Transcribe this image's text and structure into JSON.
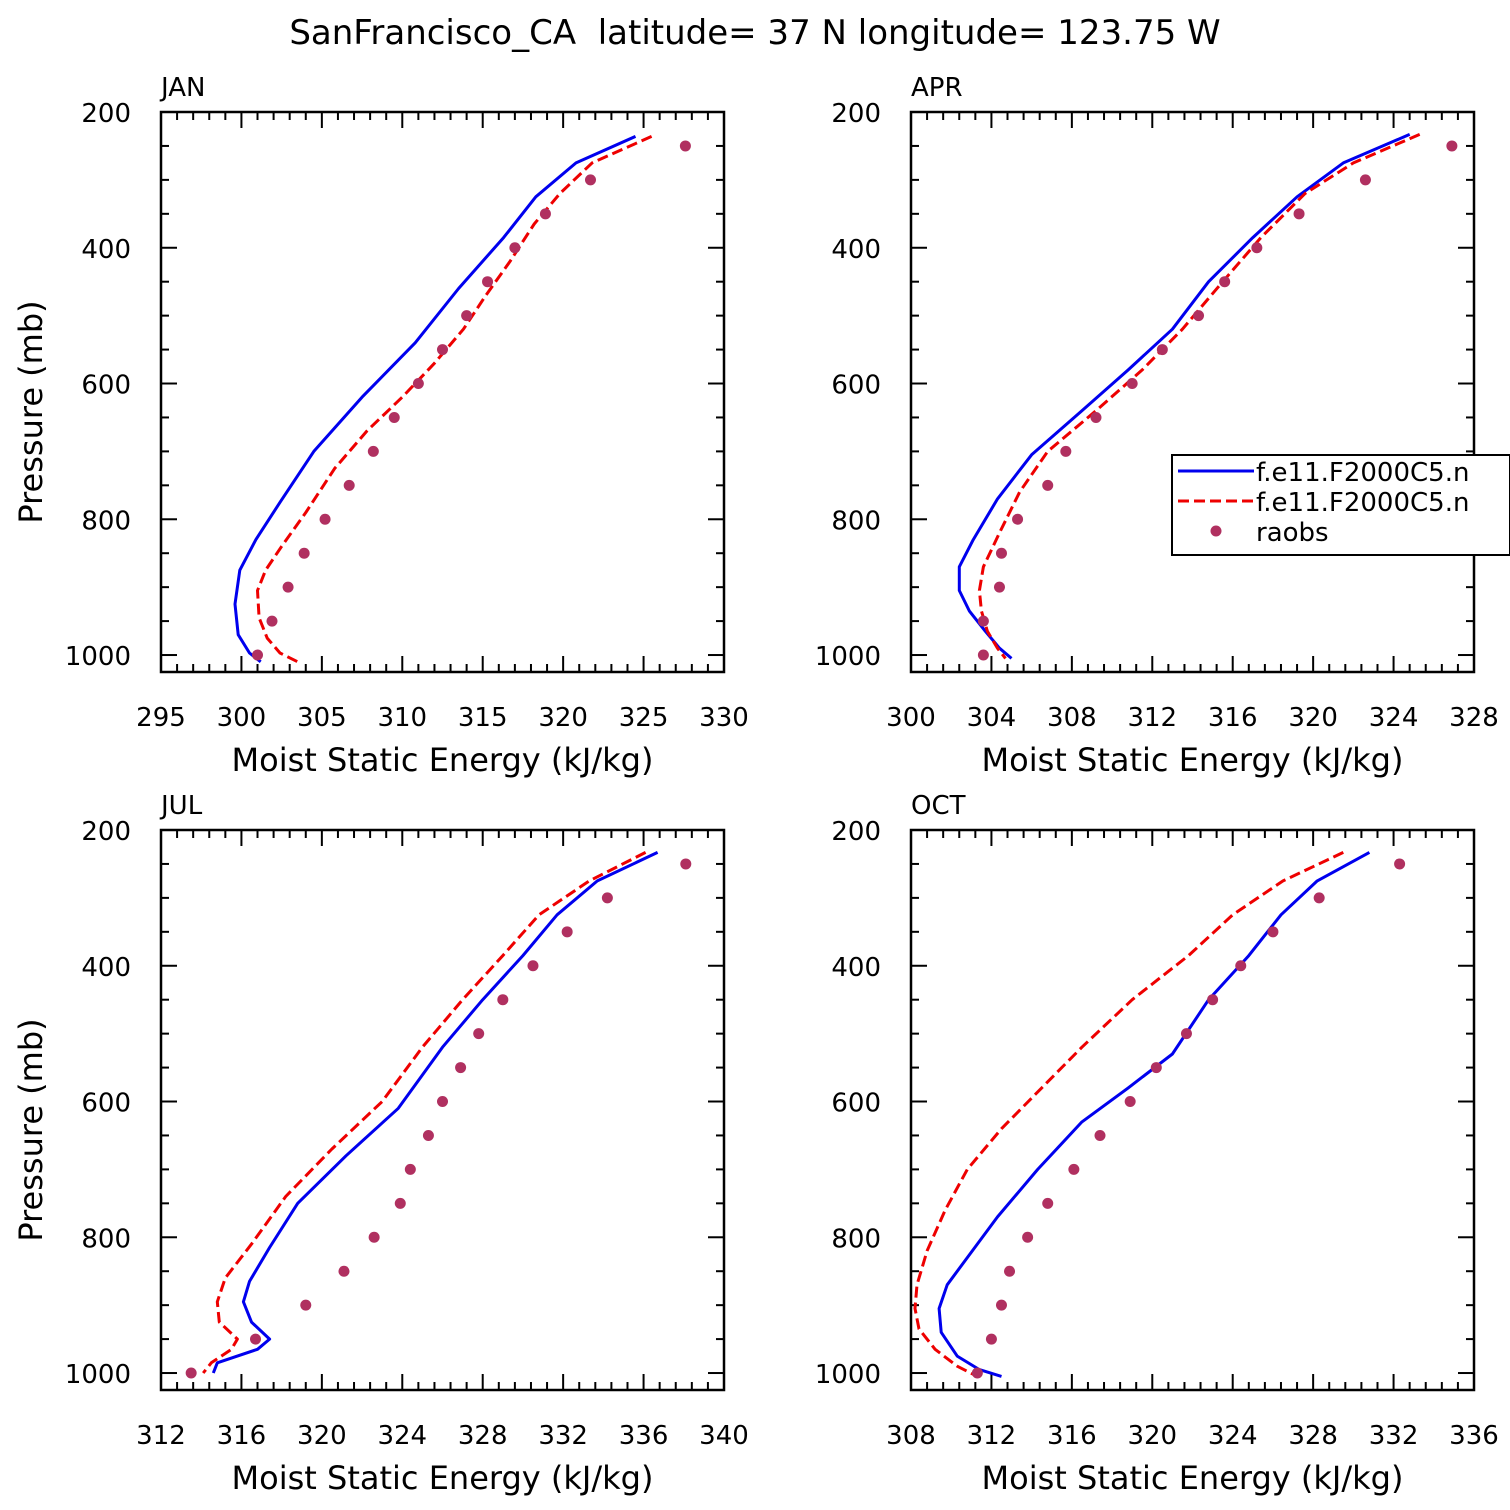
{
  "title": "SanFrancisco_CA  latitude= 37 N longitude= 123.75 W",
  "colors": {
    "model1": "#0000ee",
    "model2": "#ee0000",
    "raobs": "#b03060",
    "axis": "#000000"
  },
  "legend": {
    "items": [
      {
        "label": "f.e11.F2000C5.n",
        "style": "solid"
      },
      {
        "label": "f.e11.F2000C5.n",
        "style": "dashed"
      },
      {
        "label": "raobs",
        "style": "dot"
      }
    ]
  },
  "chart_data": [
    {
      "type": "line",
      "panel": "JAN",
      "xlabel": "Moist Static Energy (kJ/kg)",
      "ylabel": "Pressure (mb)",
      "xlim": [
        295,
        330
      ],
      "ylim": [
        1025,
        200
      ],
      "xticks": [
        "295",
        "300",
        "305",
        "310",
        "315",
        "320",
        "325",
        "330"
      ],
      "yticks": [
        "200",
        "400",
        "600",
        "800",
        "1000"
      ],
      "series": [
        {
          "name": "model1",
          "points": [
            [
              324.5,
              236
            ],
            [
              320.8,
              275
            ],
            [
              318.3,
              325
            ],
            [
              316.3,
              385
            ],
            [
              313.5,
              460
            ],
            [
              310.8,
              540
            ],
            [
              307.5,
              620
            ],
            [
              304.5,
              700
            ],
            [
              302.4,
              775
            ],
            [
              300.9,
              830
            ],
            [
              299.9,
              875
            ],
            [
              299.6,
              925
            ],
            [
              299.8,
              970
            ],
            [
              300.5,
              997
            ],
            [
              301.2,
              1010
            ]
          ]
        },
        {
          "name": "model2",
          "points": [
            [
              325.5,
              236
            ],
            [
              321.8,
              275
            ],
            [
              319.8,
              320
            ],
            [
              318.2,
              365
            ],
            [
              316.7,
              420
            ],
            [
              315.2,
              470
            ],
            [
              313.8,
              520
            ],
            [
              312.0,
              570
            ],
            [
              310.0,
              620
            ],
            [
              307.8,
              670
            ],
            [
              305.8,
              725
            ],
            [
              304.0,
              790
            ],
            [
              302.5,
              840
            ],
            [
              301.5,
              875
            ],
            [
              301.0,
              905
            ],
            [
              301.1,
              945
            ],
            [
              301.6,
              975
            ],
            [
              302.4,
              997
            ],
            [
              303.5,
              1010
            ]
          ]
        },
        {
          "name": "raobs",
          "points": [
            [
              327.6,
              250
            ],
            [
              321.7,
              300
            ],
            [
              318.9,
              350
            ],
            [
              317.0,
              400
            ],
            [
              315.3,
              450
            ],
            [
              314.0,
              500
            ],
            [
              312.5,
              550
            ],
            [
              311.0,
              600
            ],
            [
              309.5,
              650
            ],
            [
              308.2,
              700
            ],
            [
              306.7,
              750
            ],
            [
              305.2,
              800
            ],
            [
              303.9,
              850
            ],
            [
              302.9,
              900
            ],
            [
              301.9,
              950
            ],
            [
              301.0,
              1000
            ]
          ]
        }
      ]
    },
    {
      "type": "line",
      "panel": "APR",
      "xlabel": "Moist Static Energy (kJ/kg)",
      "ylabel": "",
      "xlim": [
        300,
        328
      ],
      "ylim": [
        1025,
        200
      ],
      "xticks": [
        "300",
        "304",
        "308",
        "312",
        "316",
        "320",
        "324",
        "328"
      ],
      "yticks": [
        "200",
        "400",
        "600",
        "800",
        "1000"
      ],
      "series": [
        {
          "name": "model1",
          "points": [
            [
              324.8,
              233
            ],
            [
              321.5,
              275
            ],
            [
              319.2,
              325
            ],
            [
              317.0,
              385
            ],
            [
              314.8,
              450
            ],
            [
              313.0,
              520
            ],
            [
              310.8,
              580
            ],
            [
              308.5,
              640
            ],
            [
              306.0,
              705
            ],
            [
              304.3,
              770
            ],
            [
              303.1,
              830
            ],
            [
              302.4,
              870
            ],
            [
              302.4,
              905
            ],
            [
              302.9,
              935
            ],
            [
              303.7,
              965
            ],
            [
              304.4,
              990
            ],
            [
              305.0,
              1005
            ]
          ]
        },
        {
          "name": "model2",
          "points": [
            [
              325.3,
              233
            ],
            [
              322.0,
              275
            ],
            [
              319.6,
              320
            ],
            [
              317.4,
              385
            ],
            [
              315.5,
              450
            ],
            [
              313.5,
              520
            ],
            [
              311.5,
              580
            ],
            [
              309.2,
              640
            ],
            [
              306.8,
              700
            ],
            [
              305.4,
              760
            ],
            [
              304.4,
              820
            ],
            [
              303.6,
              870
            ],
            [
              303.4,
              905
            ],
            [
              303.5,
              935
            ],
            [
              303.8,
              965
            ],
            [
              304.3,
              990
            ],
            [
              304.7,
              1005
            ]
          ]
        },
        {
          "name": "raobs",
          "points": [
            [
              326.9,
              250
            ],
            [
              322.6,
              300
            ],
            [
              319.3,
              350
            ],
            [
              317.2,
              400
            ],
            [
              315.6,
              450
            ],
            [
              314.3,
              500
            ],
            [
              312.5,
              550
            ],
            [
              311.0,
              600
            ],
            [
              309.2,
              650
            ],
            [
              307.7,
              700
            ],
            [
              306.8,
              750
            ],
            [
              305.3,
              800
            ],
            [
              304.5,
              850
            ],
            [
              304.4,
              900
            ],
            [
              303.6,
              950
            ],
            [
              303.6,
              1000
            ]
          ]
        }
      ]
    },
    {
      "type": "line",
      "panel": "JUL",
      "xlabel": "Moist Static Energy (kJ/kg)",
      "ylabel": "Pressure (mb)",
      "xlim": [
        312,
        340
      ],
      "ylim": [
        1025,
        200
      ],
      "xticks": [
        "312",
        "316",
        "320",
        "324",
        "328",
        "332",
        "336",
        "340"
      ],
      "yticks": [
        "200",
        "400",
        "600",
        "800",
        "1000"
      ],
      "series": [
        {
          "name": "model1",
          "points": [
            [
              336.7,
              233
            ],
            [
              333.7,
              275
            ],
            [
              331.7,
              325
            ],
            [
              330.0,
              385
            ],
            [
              328.0,
              450
            ],
            [
              326.0,
              520
            ],
            [
              323.8,
              610
            ],
            [
              321.2,
              680
            ],
            [
              318.8,
              750
            ],
            [
              317.4,
              815
            ],
            [
              316.4,
              865
            ],
            [
              316.1,
              895
            ],
            [
              316.5,
              925
            ],
            [
              317.4,
              950
            ],
            [
              316.8,
              965
            ],
            [
              314.8,
              985
            ],
            [
              314.6,
              1000
            ]
          ]
        },
        {
          "name": "model2",
          "points": [
            [
              336.1,
              233
            ],
            [
              333.3,
              275
            ],
            [
              330.8,
              325
            ],
            [
              329.0,
              385
            ],
            [
              327.0,
              450
            ],
            [
              325.0,
              520
            ],
            [
              323.0,
              600
            ],
            [
              320.5,
              670
            ],
            [
              318.2,
              740
            ],
            [
              316.5,
              810
            ],
            [
              315.2,
              860
            ],
            [
              314.8,
              895
            ],
            [
              314.9,
              925
            ],
            [
              315.8,
              950
            ],
            [
              315.5,
              965
            ],
            [
              314.5,
              985
            ],
            [
              314.1,
              1000
            ]
          ]
        },
        {
          "name": "raobs",
          "points": [
            [
              338.1,
              250
            ],
            [
              334.2,
              300
            ],
            [
              332.2,
              350
            ],
            [
              330.5,
              400
            ],
            [
              329.0,
              450
            ],
            [
              327.8,
              500
            ],
            [
              326.9,
              550
            ],
            [
              326.0,
              600
            ],
            [
              325.3,
              650
            ],
            [
              324.4,
              700
            ],
            [
              323.9,
              750
            ],
            [
              322.6,
              800
            ],
            [
              321.1,
              850
            ],
            [
              319.2,
              900
            ],
            [
              316.7,
              950
            ],
            [
              313.5,
              1000
            ]
          ]
        }
      ]
    },
    {
      "type": "line",
      "panel": "OCT",
      "xlabel": "Moist Static Energy (kJ/kg)",
      "ylabel": "",
      "xlim": [
        308,
        336
      ],
      "ylim": [
        1025,
        200
      ],
      "xticks": [
        "308",
        "312",
        "316",
        "320",
        "324",
        "328",
        "332",
        "336"
      ],
      "yticks": [
        "200",
        "400",
        "600",
        "800",
        "1000"
      ],
      "series": [
        {
          "name": "model1",
          "points": [
            [
              330.8,
              233
            ],
            [
              328.2,
              275
            ],
            [
              326.4,
              325
            ],
            [
              324.8,
              385
            ],
            [
              322.8,
              450
            ],
            [
              321.0,
              530
            ],
            [
              318.8,
              580
            ],
            [
              316.5,
              630
            ],
            [
              314.3,
              700
            ],
            [
              312.3,
              770
            ],
            [
              310.8,
              830
            ],
            [
              309.8,
              870
            ],
            [
              309.4,
              905
            ],
            [
              309.5,
              940
            ],
            [
              310.3,
              975
            ],
            [
              311.4,
              995
            ],
            [
              312.5,
              1005
            ]
          ]
        },
        {
          "name": "model2",
          "points": [
            [
              329.5,
              233
            ],
            [
              326.5,
              275
            ],
            [
              324.0,
              325
            ],
            [
              321.8,
              385
            ],
            [
              319.0,
              450
            ],
            [
              316.5,
              520
            ],
            [
              314.5,
              580
            ],
            [
              312.5,
              640
            ],
            [
              310.8,
              700
            ],
            [
              309.7,
              760
            ],
            [
              308.8,
              820
            ],
            [
              308.3,
              870
            ],
            [
              308.2,
              905
            ],
            [
              308.4,
              935
            ],
            [
              309.2,
              965
            ],
            [
              310.3,
              990
            ],
            [
              311.3,
              1005
            ]
          ]
        },
        {
          "name": "raobs",
          "points": [
            [
              332.3,
              250
            ],
            [
              328.3,
              300
            ],
            [
              326.0,
              350
            ],
            [
              324.4,
              400
            ],
            [
              323.0,
              450
            ],
            [
              321.7,
              500
            ],
            [
              320.2,
              550
            ],
            [
              318.9,
              600
            ],
            [
              317.4,
              650
            ],
            [
              316.1,
              700
            ],
            [
              314.8,
              750
            ],
            [
              313.8,
              800
            ],
            [
              312.9,
              850
            ],
            [
              312.5,
              900
            ],
            [
              312.0,
              950
            ],
            [
              311.3,
              1000
            ]
          ]
        }
      ]
    }
  ]
}
